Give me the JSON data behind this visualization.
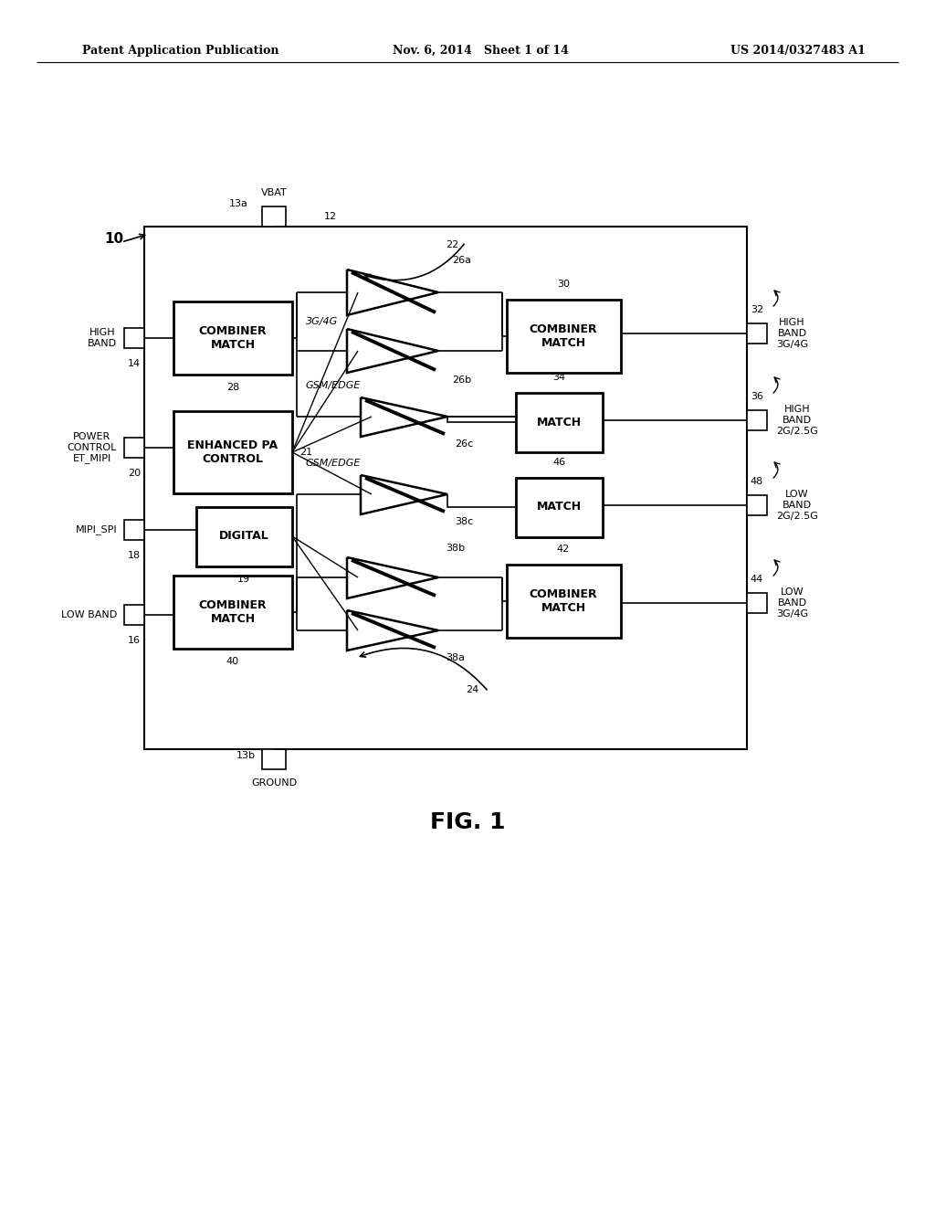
{
  "header_left": "Patent Application Publication",
  "header_mid": "Nov. 6, 2014   Sheet 1 of 14",
  "header_right": "US 2014/0327483 A1",
  "fig_label": "FIG. 1",
  "bg_color": "#ffffff",
  "line_color": "#000000"
}
